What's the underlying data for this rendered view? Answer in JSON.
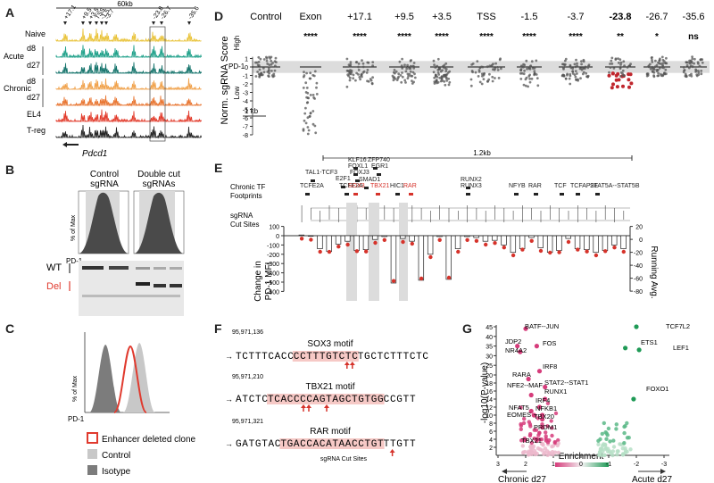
{
  "panels": {
    "A": {
      "letter": "A",
      "scale": "60kb",
      "sites": [
        "+17.1",
        "+9.5",
        "+3.5",
        "TSS",
        "-1.5",
        "-3.7",
        "-23.8",
        "-26.7",
        "-35.6"
      ],
      "tracks": [
        "Naive",
        "d8",
        "d27",
        "d8",
        "d27",
        "EL4",
        "T-reg"
      ],
      "groups": [
        "Acute",
        "Chronic"
      ],
      "gene": "Pdcd1",
      "colors": [
        "#e9c33a",
        "#1ea089",
        "#12726a",
        "#f0a14a",
        "#e8742f",
        "#e23a2a",
        "#222222",
        "#222222"
      ]
    },
    "B": {
      "letter": "B",
      "cond1": "Control",
      "cond1b": "sgRNA",
      "cond2": "Double cut",
      "cond2b": "sgRNAs",
      "ylab": "% of Max",
      "xlab": "PD-1",
      "wt": "WT",
      "del": "Del"
    },
    "C": {
      "letter": "C",
      "ylab": "% of Max",
      "xlab": "PD-1",
      "legend": [
        "Enhancer deleted clone",
        "Control",
        "Isotype"
      ],
      "colors": [
        "#e03a2e",
        "#c8c8c8",
        "#7c7c7c"
      ]
    },
    "D": {
      "letter": "D",
      "ylabel": "Norm. sgRNA Score",
      "high": "High",
      "low": "Low",
      "pd1": "PD-1",
      "scalebar": "1 kb",
      "yticks": [
        "1",
        "0",
        "-1",
        "-2",
        "-3",
        "-4",
        "-5",
        "-6",
        "-7",
        "-8"
      ]
    },
    "E": {
      "letter": "E",
      "scale": "1.2kb",
      "tf_label": "Chronic TF",
      "tf_label2": "Footprints",
      "cut_label": "sgRNA",
      "cut_label2": "Cut Sites",
      "ylabel": "Change in",
      "ylabel2": "PD-1 MFI",
      "y2label": "Running Avg.",
      "tfs": [
        "TAL1-TCF3",
        "TCFE2A",
        "TCFE2A",
        "E2F1",
        "FOXJ3",
        "FOXL1",
        "KLF16",
        "ZFP740",
        "EGR1",
        "SMAD1",
        "SOX3",
        "TBX21",
        "HIC1",
        "RAR",
        "RUNX2",
        "RUNX3",
        "NFYB",
        "RAR",
        "TCF",
        "TCFAP2E",
        "STAT5A--STAT5B"
      ],
      "yticks": [
        "100",
        "0",
        "-100",
        "-200",
        "-300",
        "-400",
        "-500",
        "-600"
      ],
      "y2ticks": [
        "20",
        "0",
        "-20",
        "-40",
        "-60",
        "-80"
      ]
    },
    "F": {
      "letter": "F",
      "motifs": [
        {
          "coord": "95,971,136",
          "name": "SOX3 motif",
          "pre": "TCTTTCACC",
          "hl": "CCTTTGTCTC",
          "post": "TGCTCTTTCTC"
        },
        {
          "coord": "95,971,210",
          "name": "TBX21 motif",
          "pre": "ATCTC",
          "hl": "TCACCCCAGTAGCTGTGG",
          "post": "CCGTT"
        },
        {
          "coord": "95,971,321",
          "name": "RAR motif",
          "pre": "GATGTAC",
          "hl": "TGACCACATAACCTGT",
          "post": "TTGTT"
        }
      ],
      "cut_label": "sgRNA Cut Sites"
    },
    "G": {
      "letter": "G",
      "ylabel": "-log10(P-value)",
      "xlabel": "Enrichment",
      "left": "Chronic d27",
      "right": "Acute d27",
      "xticks": [
        "3",
        "2",
        "1",
        "0",
        "-1",
        "-2",
        "-3"
      ],
      "yticks": [
        "2",
        "4",
        "6",
        "8",
        "10",
        "12",
        "14",
        "16",
        "18",
        "20",
        "25",
        "30",
        "35",
        "40",
        "45"
      ],
      "labels": [
        "BATF--JUN",
        "JDP2",
        "NR4A2",
        "FOS",
        "IRF8",
        "RARA",
        "STAT2--STAT1",
        "NFE2--MAF",
        "RUNX1",
        "IRF4",
        "NFAT5",
        "NFKB1",
        "EOMES",
        "TBX20",
        "PRDM1",
        "TBX21",
        "TCF7L2",
        "ETS1",
        "LEF1",
        "FOXO1"
      ]
    }
  },
  "chart_data": [
    {
      "type": "scatter",
      "panel": "D",
      "categories": [
        "Control",
        "Exon",
        "+17.1",
        "+9.5",
        "+3.5",
        "TSS",
        "-1.5",
        "-3.7",
        "-23.8",
        "-26.7",
        "-35.6"
      ],
      "significance": [
        "",
        "****",
        "****",
        "****",
        "****",
        "****",
        "****",
        "****",
        "**",
        "*",
        "ns"
      ],
      "ylim": [
        -8,
        1.2
      ]
    },
    {
      "type": "bar",
      "panel": "E",
      "values": [
        8,
        -5,
        -140,
        -170,
        -90,
        -60,
        -160,
        -150,
        -40,
        -10,
        -510,
        -30,
        -60,
        -480,
        -200,
        -10,
        -470,
        -140,
        -10,
        -20,
        -60,
        -50,
        -100,
        -180,
        -140,
        -20,
        -130,
        -180,
        -160,
        -30,
        -140,
        -150,
        -180,
        -160,
        -100,
        -140
      ],
      "ylim": [
        -600,
        100
      ]
    },
    {
      "type": "scatter",
      "panel": "G",
      "xlim": [
        3,
        -3
      ],
      "ylim": [
        0,
        45
      ]
    }
  ]
}
